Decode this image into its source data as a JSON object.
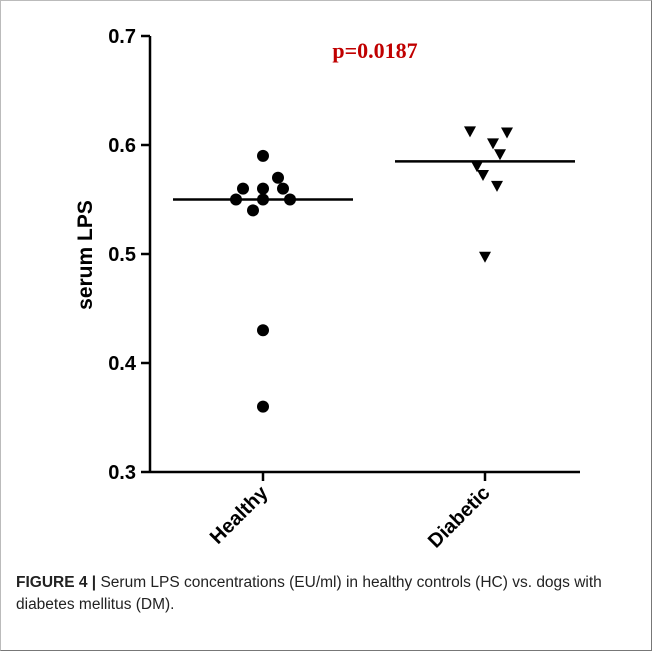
{
  "chart_data": {
    "type": "scatter",
    "ylabel": "serum LPS",
    "xlabel": "",
    "ylim": [
      0.3,
      0.7
    ],
    "yticks": [
      "0.3",
      "0.4",
      "0.5",
      "0.6",
      "0.7"
    ],
    "categories": [
      "Healthy",
      "Diabetic"
    ],
    "annotation": "p=0.0187",
    "annotation_color": "#c00000",
    "series": [
      {
        "category": "Healthy",
        "marker": "circle",
        "values": [
          0.59,
          0.57,
          0.56,
          0.56,
          0.56,
          0.55,
          0.55,
          0.55,
          0.54,
          0.43,
          0.36
        ],
        "mean": 0.55
      },
      {
        "category": "Diabetic",
        "marker": "triangle-down",
        "values": [
          0.612,
          0.611,
          0.601,
          0.591,
          0.58,
          0.572,
          0.562,
          0.497
        ],
        "mean": 0.585
      }
    ],
    "grid": false
  },
  "caption": {
    "label": "FIGURE 4 |",
    "text": " Serum LPS concentrations (EU/ml) in healthy controls (HC) vs. dogs with diabetes mellitus (DM)."
  }
}
